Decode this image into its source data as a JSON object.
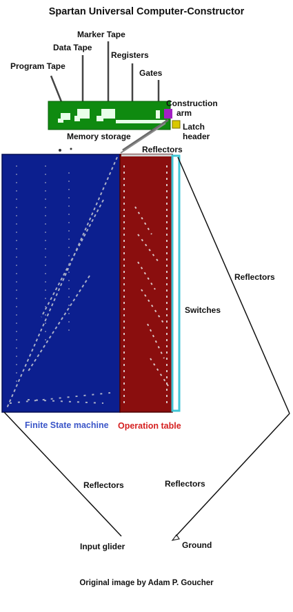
{
  "title": "Spartan Universal Computer-Constructor",
  "labels": {
    "program_tape": "Program Tape",
    "data_tape": "Data Tape",
    "marker_tape": "Marker Tape",
    "registers": "Registers",
    "gates": "Gates",
    "construction_arm_line1": "Construction",
    "construction_arm_line2": "arm",
    "latch_header_line1": "Latch",
    "latch_header_line2": "header",
    "memory_storage": "Memory storage",
    "reflectors_top": "Reflectors",
    "reflectors_right": "Reflectors",
    "switches": "Switches",
    "finite_state_machine": "Finite State machine",
    "operation_table": "Operation table",
    "reflectors_bottom_left": "Reflectors",
    "reflectors_bottom_right": "Reflectors",
    "input_glider": "Input glider",
    "ground": "Ground"
  },
  "credit": "Original image by Adam P. Goucher",
  "colors": {
    "memory_block": "#0f8a10",
    "finite_state_machine": "#0c1f8f",
    "operation_table": "#8a0e0e",
    "switches_border": "#3fc5d4",
    "construction_arm": "#a21fc4",
    "latch_header": "#d9c800",
    "fsm_caption": "#3a55c8",
    "table_caption": "#d52020"
  }
}
